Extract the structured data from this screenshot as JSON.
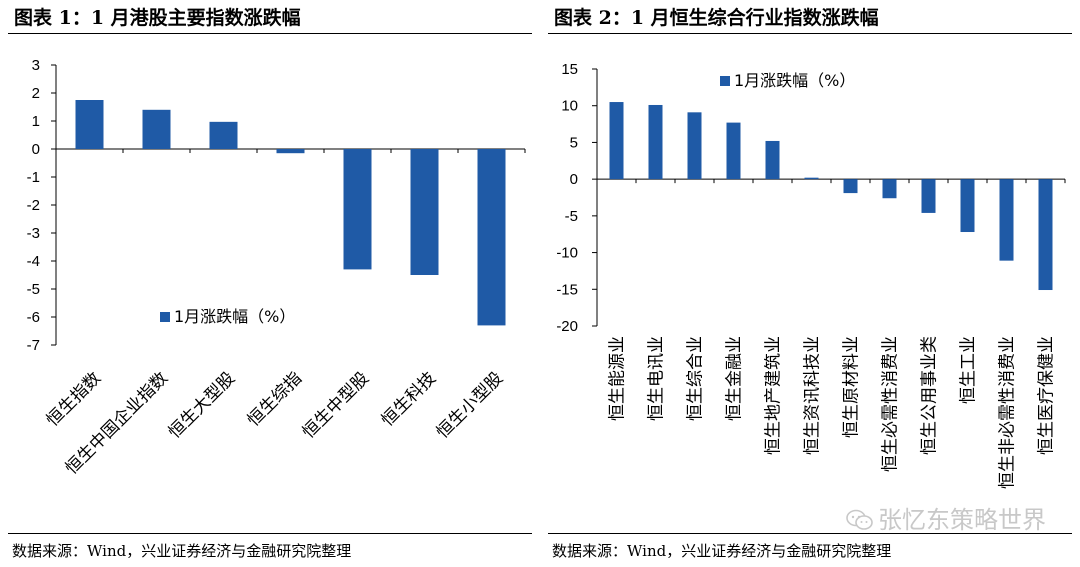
{
  "colors": {
    "bar": "#1f5aa6",
    "axis": "#000000",
    "watermark": "#c8c8c8"
  },
  "watermark_text": "张忆东策略世界",
  "chart_data": [
    {
      "type": "bar",
      "title": "图表 1：1 月港股主要指数涨跌幅",
      "source": "数据来源：Wind，兴业证券经济与金融研究院整理",
      "legend": "1月涨跌幅（%）",
      "legend_position": "bottom-right",
      "categories": [
        "恒生指数",
        "恒生中国企业指数",
        "恒生大型股",
        "恒生综指",
        "恒生中型股",
        "恒生科技",
        "恒生小型股"
      ],
      "values": [
        1.75,
        1.4,
        0.97,
        -0.15,
        -4.3,
        -4.5,
        -6.3
      ],
      "ylim": [
        -7,
        3
      ],
      "yticks": [
        3,
        2,
        1,
        0,
        -1,
        -2,
        -3,
        -4,
        -5,
        -6,
        -7
      ],
      "ytick_labels": [
        "3",
        "2",
        "1",
        "0",
        "-1",
        "-2",
        "-3",
        "-4",
        "-5",
        "-6",
        "-7"
      ],
      "xlabel": "",
      "ylabel": "",
      "grid": false
    },
    {
      "type": "bar",
      "title": "图表 2：1 月恒生综合行业指数涨跌幅",
      "source": "数据来源：Wind，兴业证券经济与金融研究院整理",
      "legend": "1月涨跌幅（%）",
      "legend_position": "top-left",
      "categories": [
        "恒生能源业",
        "恒生电讯业",
        "恒生综合业",
        "恒生金融业",
        "恒生地产建筑业",
        "恒生资讯科技业",
        "恒生原材料业",
        "恒生必需性消费业",
        "恒生公用事业类",
        "恒生工业",
        "恒生非必需性消费业",
        "恒生医疗保健业"
      ],
      "values": [
        10.5,
        10.1,
        9.1,
        7.7,
        5.2,
        0.2,
        -1.9,
        -2.6,
        -4.6,
        -7.2,
        -11.1,
        -15.1
      ],
      "ylim": [
        -20,
        15
      ],
      "yticks": [
        15,
        10,
        5,
        0,
        -5,
        -10,
        -15,
        -20
      ],
      "ytick_labels": [
        "15",
        "10",
        "5",
        "0",
        "-5",
        "-10",
        "-15",
        "-20"
      ],
      "xlabel": "",
      "ylabel": "",
      "grid": false
    }
  ]
}
